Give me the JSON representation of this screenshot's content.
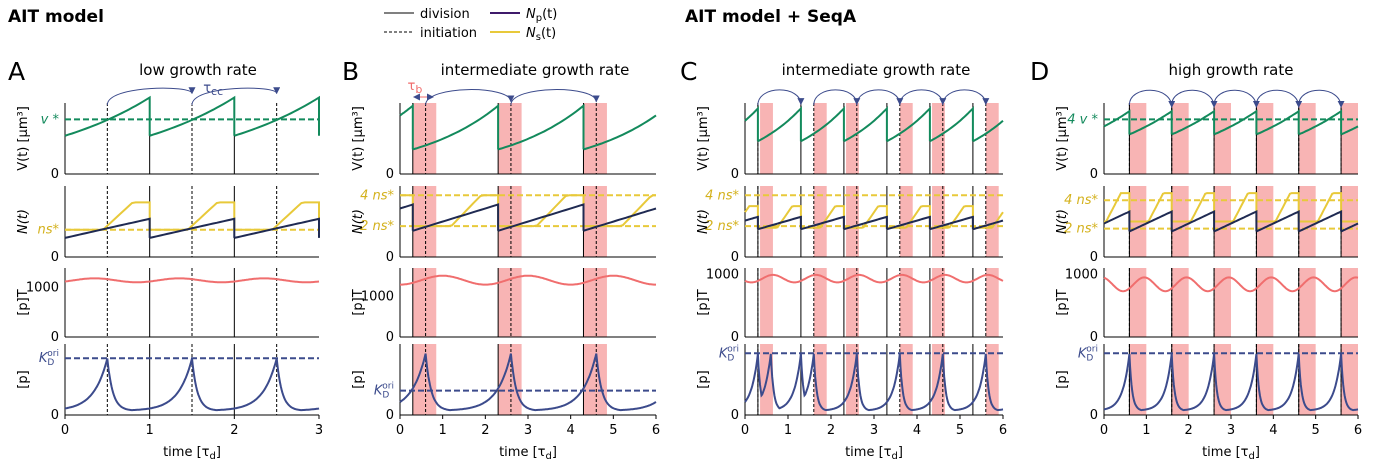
{
  "figure": {
    "group_headers": [
      "AIT model",
      "AIT model + SeqA"
    ],
    "legend": [
      {
        "label": "division",
        "style": "solid",
        "color": "#000000"
      },
      {
        "label": "initiation",
        "style": "dashed",
        "color": "#000000"
      },
      {
        "label": "N_p(t)",
        "main": "N",
        "sub": "p",
        "tail": "(t)",
        "color": "#3f1a6b"
      },
      {
        "label": "N_s(t)",
        "main": "N",
        "sub": "s",
        "tail": "(t)",
        "color": "#e8c93a"
      }
    ],
    "xlabel_main": "time [τ",
    "xlabel_sub": "d",
    "xlabel_tail": "]",
    "row_labels": [
      "V(t) [μm³]",
      "N(t)",
      "[p]T",
      "[p]"
    ],
    "colors": {
      "volume": "#138a5c",
      "volume_ref": "#138a5c",
      "Np": "#1f2a52",
      "Ns": "#e8c93a",
      "pT": "#f06e6e",
      "p": "#3c4b8c",
      "shade": "#f7a7a7",
      "arrow": "#3c4b8c",
      "tau_b": "#f06e6e"
    }
  },
  "chart_data": [
    {
      "type": "line",
      "letter": "A",
      "title": "low growth rate",
      "xlim": [
        0,
        3
      ],
      "xticks": [
        "0",
        "1",
        "2",
        "3"
      ],
      "division_times": [
        1,
        2
      ],
      "initiation_times": [
        0.5,
        1.5,
        2.5
      ],
      "shaded_intervals": [],
      "arrow_label": "τcc",
      "arrow_label_main": "τ",
      "arrow_label_sub": "cc",
      "volume": {
        "ylim": [
          0,
          1.3
        ],
        "yticks": [
          "0"
        ],
        "ref_level": 1.0,
        "ref_label": "v *",
        "seg_start": 0.7,
        "seg_end": 1.4
      },
      "N": {
        "ylim": [
          0,
          2.6
        ],
        "yticks": [
          "0"
        ],
        "refs": [
          {
            "level": 1,
            "label": "ns*"
          }
        ],
        "Np_start": 0.7,
        "Np_end": 1.4,
        "Ns_base": 1.0,
        "Ns_top": 2.0
      },
      "pT": {
        "ylim": [
          0,
          1400
        ],
        "yticks": [
          "0",
          "1000"
        ],
        "mean": 1150,
        "amp": 40
      },
      "p": {
        "ylim": [
          0,
          1.25
        ],
        "yticks": [
          "0"
        ],
        "kd_level": 1.0,
        "kd_label": "KDori",
        "kd_sub": "D",
        "kd_sup": "ori"
      }
    },
    {
      "type": "line",
      "letter": "B",
      "title": "intermediate growth rate",
      "xlim": [
        0,
        6
      ],
      "xticks": [
        "0",
        "1",
        "2",
        "3",
        "4",
        "5",
        "6"
      ],
      "division_times": [
        0.3,
        2.3,
        4.3
      ],
      "initiation_times": [
        0.6,
        2.6,
        4.6
      ],
      "shaded_intervals": [
        [
          0.3,
          0.85
        ],
        [
          2.3,
          2.85
        ],
        [
          4.3,
          4.85
        ]
      ],
      "arrow_label": "τb",
      "arrow_label_main": "τ",
      "arrow_label_sub": "b",
      "volume": {
        "ylim": [
          0,
          1.3
        ],
        "yticks": [
          "0"
        ],
        "ref_level": null,
        "seg_start": 0.45,
        "seg_end": 1.25
      },
      "N": {
        "ylim": [
          0,
          4.6
        ],
        "yticks": [
          "0"
        ],
        "refs": [
          {
            "level": 2,
            "label": "2 ns*"
          },
          {
            "level": 4,
            "label": "4 ns*"
          }
        ],
        "Np_start": 1.7,
        "Np_end": 3.4,
        "Ns_base": 2.0,
        "Ns_top": 4.0
      },
      "pT": {
        "ylim": [
          0,
          1700
        ],
        "yticks": [
          "0",
          "1000"
        ],
        "mean": 1400,
        "amp": 110
      },
      "p": {
        "ylim": [
          0,
          1.6
        ],
        "yticks": [
          "0"
        ],
        "kd_level": 0.55,
        "kd_label": "KDori",
        "kd_sub": "D",
        "kd_sup": "ori"
      }
    },
    {
      "type": "line",
      "letter": "C",
      "title": "intermediate growth rate",
      "xlim": [
        0,
        6
      ],
      "xticks": [
        "0",
        "1",
        "2",
        "3",
        "4",
        "5",
        "6"
      ],
      "division_times": [
        0.3,
        1.3,
        2.3,
        3.3,
        4.3,
        5.3
      ],
      "initiation_times": [
        0.3,
        1.6,
        2.6,
        3.6,
        4.6,
        5.6
      ],
      "shaded_intervals": [
        [
          0.35,
          0.65
        ],
        [
          1.6,
          1.9
        ],
        [
          2.35,
          2.65
        ],
        [
          3.6,
          3.9
        ],
        [
          4.35,
          4.65
        ],
        [
          5.6,
          5.9
        ]
      ],
      "arrow_label": "",
      "volume": {
        "ylim": [
          0,
          1.3
        ],
        "yticks": [
          "0"
        ],
        "ref_level": null,
        "seg_start": 0.6,
        "seg_end": 1.2
      },
      "N": {
        "ylim": [
          0,
          4.6
        ],
        "yticks": [
          "0"
        ],
        "refs": [
          {
            "level": 2,
            "label": "2 ns*"
          },
          {
            "level": 4,
            "label": "4 ns*"
          }
        ],
        "Np_start": 1.8,
        "Np_end": 2.6,
        "Ns_base": 1.9,
        "Ns_top": 3.3
      },
      "pT": {
        "ylim": [
          0,
          1100
        ],
        "yticks": [
          "0",
          "1000"
        ],
        "mean": 930,
        "amp": 60
      },
      "p": {
        "ylim": [
          0,
          1.15
        ],
        "yticks": [
          "0"
        ],
        "kd_level": 1.0,
        "kd_label": "KDori",
        "kd_sub": "D",
        "kd_sup": "ori"
      }
    },
    {
      "type": "line",
      "letter": "D",
      "title": "high growth rate",
      "xlim": [
        0,
        6
      ],
      "xticks": [
        "0",
        "1",
        "2",
        "3",
        "4",
        "5",
        "6"
      ],
      "division_times": [
        0.6,
        1.6,
        2.6,
        3.6,
        4.6,
        5.6
      ],
      "initiation_times": [
        0.6,
        1.6,
        2.6,
        3.6,
        4.6,
        5.6
      ],
      "shaded_intervals": [
        [
          0.6,
          1.0
        ],
        [
          1.6,
          2.0
        ],
        [
          2.6,
          3.0
        ],
        [
          3.6,
          4.0
        ],
        [
          4.6,
          5.0
        ],
        [
          5.6,
          6.0
        ]
      ],
      "arrow_label": "",
      "volume": {
        "ylim": [
          0,
          5.2
        ],
        "yticks": [
          "0"
        ],
        "ref_level": 4,
        "ref_label": "4 v *",
        "seg_start": 2.9,
        "seg_end": 4.6
      },
      "N": {
        "ylim": [
          0,
          5.0
        ],
        "yticks": [
          "0"
        ],
        "refs": [
          {
            "level": 2,
            "label": "2 ns*"
          },
          {
            "level": 4,
            "label": "4 ns*"
          }
        ],
        "Np_start": 1.8,
        "Np_end": 3.2,
        "Ns_base": 2.5,
        "Ns_top": 4.5
      },
      "pT": {
        "ylim": [
          0,
          1100
        ],
        "yticks": [
          "0",
          "1000"
        ],
        "mean": 840,
        "amp": 110
      },
      "p": {
        "ylim": [
          0,
          1.15
        ],
        "yticks": [
          "0"
        ],
        "kd_level": 1.0,
        "kd_label": "KDori",
        "kd_sub": "D",
        "kd_sup": "ori"
      }
    }
  ]
}
